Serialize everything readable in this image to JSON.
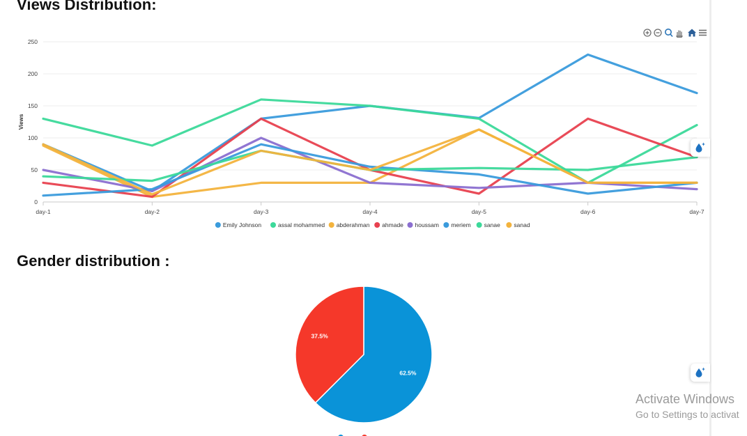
{
  "views_section": {
    "title": "Views Distribution:"
  },
  "gender_section": {
    "title": "Gender distribution :"
  },
  "toolbar": {
    "icons": [
      "zoom-in-icon",
      "zoom-out-icon",
      "zoom-selection-icon",
      "pan-icon",
      "home-icon",
      "menu-icon"
    ]
  },
  "chart_data": [
    {
      "type": "line",
      "title": "",
      "xlabel": "",
      "ylabel": "Views",
      "categories": [
        "day-1",
        "day-2",
        "day-3",
        "day-4",
        "day-5",
        "day-6",
        "day-7"
      ],
      "ylim": [
        0,
        250
      ],
      "yticks": [
        0,
        50,
        100,
        150,
        200,
        250
      ],
      "grid": true,
      "legend": "bottom",
      "series": [
        {
          "name": "Emily Johnson",
          "color": "#3a9bdc",
          "values": [
            90,
            17,
            130,
            150,
            131,
            230,
            170
          ]
        },
        {
          "name": "assal mohammed",
          "color": "#3cd99a",
          "values": [
            130,
            88,
            160,
            150,
            130,
            30,
            120
          ]
        },
        {
          "name": "abderahman",
          "color": "#f3b33d",
          "values": [
            88,
            8,
            30,
            30,
            113,
            30,
            30
          ]
        },
        {
          "name": "ahmade",
          "color": "#e8414f",
          "values": [
            30,
            8,
            130,
            50,
            13,
            130,
            70
          ]
        },
        {
          "name": "houssam",
          "color": "#8b6fd0",
          "values": [
            50,
            17,
            100,
            30,
            22,
            30,
            20
          ]
        },
        {
          "name": "meriem",
          "color": "#3a9bdc",
          "values": [
            10,
            20,
            90,
            55,
            43,
            13,
            30
          ]
        },
        {
          "name": "sanae",
          "color": "#3cd99a",
          "values": [
            40,
            33,
            80,
            50,
            53,
            50,
            70
          ]
        },
        {
          "name": "sanad",
          "color": "#f3b33d",
          "values": [
            90,
            12,
            80,
            50,
            113,
            30,
            30
          ]
        }
      ]
    },
    {
      "type": "pie",
      "title": "",
      "legend": "bottom",
      "slices": [
        {
          "value": 62.5,
          "label": "62.5%",
          "color": "#0a93d8"
        },
        {
          "value": 37.5,
          "label": "37.5%",
          "color": "#f5382a"
        }
      ]
    }
  ],
  "watermark": {
    "title": "Activate Windows",
    "subtitle": "Go to Settings to activat"
  }
}
